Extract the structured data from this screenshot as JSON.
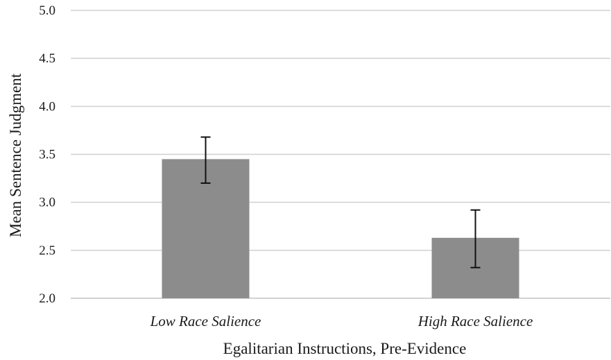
{
  "chart_data": {
    "type": "bar",
    "categories": [
      "Low Race Salience",
      "High Race Salience"
    ],
    "values": [
      3.45,
      2.63
    ],
    "error_low": [
      3.2,
      2.32
    ],
    "error_high": [
      3.68,
      2.92
    ],
    "title": "",
    "xlabel": "Egalitarian Instructions, Pre-Evidence",
    "ylabel": "Mean Sentence Judgment",
    "ylim": [
      2.0,
      5.0
    ],
    "yticks": [
      "2.0",
      "2.5",
      "3.0",
      "3.5",
      "4.0",
      "4.5",
      "5.0"
    ],
    "grid": true,
    "legend": "none",
    "bar_color": "#8c8c8c"
  }
}
